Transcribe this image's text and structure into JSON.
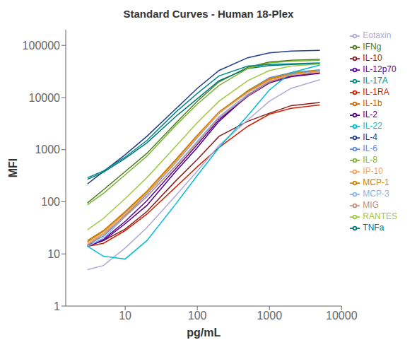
{
  "chart_data": {
    "type": "line",
    "title": "Standard Curves - Human 18-Plex",
    "xlabel": "pg/mL",
    "ylabel": "MFI",
    "log": true,
    "grid": false,
    "legend": "right",
    "xlim": [
      1.5,
      10000
    ],
    "ylim": [
      1,
      200000
    ],
    "xticks": [
      10,
      100,
      1000,
      10000
    ],
    "yticks": [
      1,
      10,
      100,
      1000,
      10000,
      100000
    ],
    "x": [
      3,
      5,
      10,
      20,
      50,
      100,
      200,
      500,
      1000,
      2000,
      5000
    ],
    "series": [
      {
        "name": "IL-4",
        "color": "#1f3d8c",
        "values": [
          220,
          380,
          800,
          1800,
          6000,
          15000,
          33000,
          58000,
          72000,
          78000,
          80000
        ]
      },
      {
        "name": "IL-10",
        "color": "#8b1a1a",
        "values": [
          15,
          18,
          30,
          65,
          250,
          650,
          1800,
          3500,
          5000,
          7000,
          8000
        ]
      },
      {
        "name": "IFNg",
        "color": "#4a7c1f",
        "values": [
          95,
          170,
          380,
          850,
          3200,
          8500,
          20000,
          38000,
          48000,
          52000,
          54000
        ]
      },
      {
        "name": "IL-2",
        "color": "#4b0082",
        "values": [
          14,
          18,
          38,
          85,
          380,
          1100,
          3500,
          11000,
          20000,
          26000,
          30000
        ]
      },
      {
        "name": "TNFa",
        "color": "#007777",
        "values": [
          270,
          370,
          680,
          1350,
          4300,
          9500,
          21000,
          36000,
          41000,
          43000,
          45000
        ]
      },
      {
        "name": "IL-1b",
        "color": "#cc6600",
        "values": [
          18,
          28,
          65,
          160,
          640,
          1900,
          5200,
          13000,
          22000,
          28000,
          32000
        ]
      },
      {
        "name": "IL-6",
        "color": "#5b8dd9",
        "values": [
          15,
          22,
          55,
          140,
          560,
          1700,
          5000,
          13500,
          24000,
          30000,
          34000
        ]
      },
      {
        "name": "IL-1RA",
        "color": "#cc2200",
        "values": [
          14,
          16,
          28,
          58,
          190,
          470,
          1100,
          2800,
          4800,
          6200,
          7200
        ]
      },
      {
        "name": "IL-8",
        "color": "#7ab533",
        "values": [
          88,
          145,
          330,
          750,
          2900,
          7500,
          17000,
          36000,
          46000,
          50000,
          52000
        ]
      },
      {
        "name": "IL-12p70",
        "color": "#5c0099",
        "values": [
          14,
          19,
          42,
          105,
          430,
          1250,
          3800,
          10500,
          19000,
          25000,
          29000
        ]
      },
      {
        "name": "IL-17A",
        "color": "#008888",
        "values": [
          290,
          390,
          720,
          1500,
          5200,
          12000,
          26000,
          40000,
          43000,
          44500,
          46000
        ]
      },
      {
        "name": "MCP-1",
        "color": "#cc8800",
        "values": [
          17,
          27,
          62,
          155,
          620,
          1850,
          5300,
          13500,
          23000,
          29000,
          33000
        ]
      },
      {
        "name": "MCP-3",
        "color": "#8ab4e8",
        "values": [
          14,
          20,
          52,
          125,
          490,
          1450,
          4300,
          11500,
          21000,
          27500,
          32000
        ]
      },
      {
        "name": "MIG",
        "color": "#c4907a",
        "values": [
          15,
          24,
          53,
          125,
          480,
          1380,
          4100,
          10800,
          20000,
          27000,
          31000
        ]
      },
      {
        "name": "RANTES",
        "color": "#a0c840",
        "values": [
          29,
          48,
          115,
          290,
          1150,
          3300,
          8500,
          21000,
          33000,
          40000,
          44000
        ]
      },
      {
        "name": "Eotaxin",
        "color": "#b0a8d8",
        "values": [
          5,
          6,
          13,
          32,
          130,
          390,
          1200,
          3700,
          8500,
          15000,
          22000
        ]
      },
      {
        "name": "IL-22",
        "color": "#00bcd4",
        "values": [
          14,
          9,
          8,
          18,
          90,
          320,
          1100,
          4500,
          14000,
          30000,
          42000
        ]
      },
      {
        "name": "IP-10",
        "color": "#f4a460",
        "values": [
          16,
          25,
          58,
          145,
          580,
          1750,
          5000,
          12500,
          21500,
          27000,
          31000
        ]
      }
    ]
  }
}
